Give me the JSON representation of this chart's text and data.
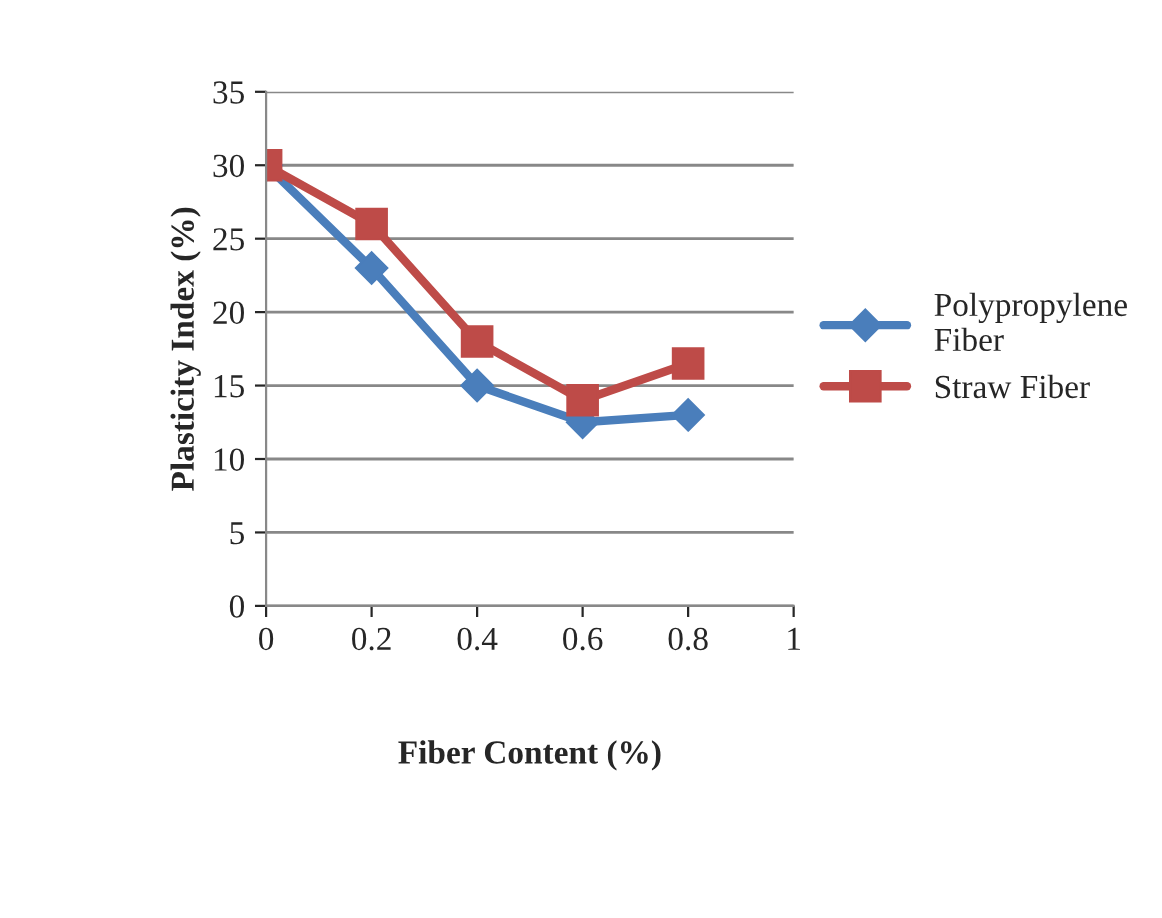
{
  "chart_data": {
    "type": "line",
    "xlabel": "Fiber Content (%)",
    "ylabel": "Plasticity Index (%)",
    "x": [
      0,
      0.2,
      0.4,
      0.6,
      0.8
    ],
    "series": [
      {
        "name": "Polypropylene\nFiber",
        "color": "#4a7ebb",
        "values": [
          30,
          23,
          15,
          12.5,
          13
        ],
        "marker": "diamond"
      },
      {
        "name": "Straw Fiber",
        "color": "#be4b48",
        "values": [
          30,
          26,
          18,
          14,
          16.5
        ],
        "marker": "square"
      }
    ],
    "xlim": [
      0,
      1
    ],
    "xticks": [
      0,
      0.2,
      0.4,
      0.6,
      0.8,
      1
    ],
    "ylim": [
      0,
      35
    ],
    "yticks": [
      0,
      5,
      10,
      15,
      20,
      25,
      30,
      35
    ],
    "grid": "y",
    "legend": "right",
    "line_style": "solid"
  }
}
